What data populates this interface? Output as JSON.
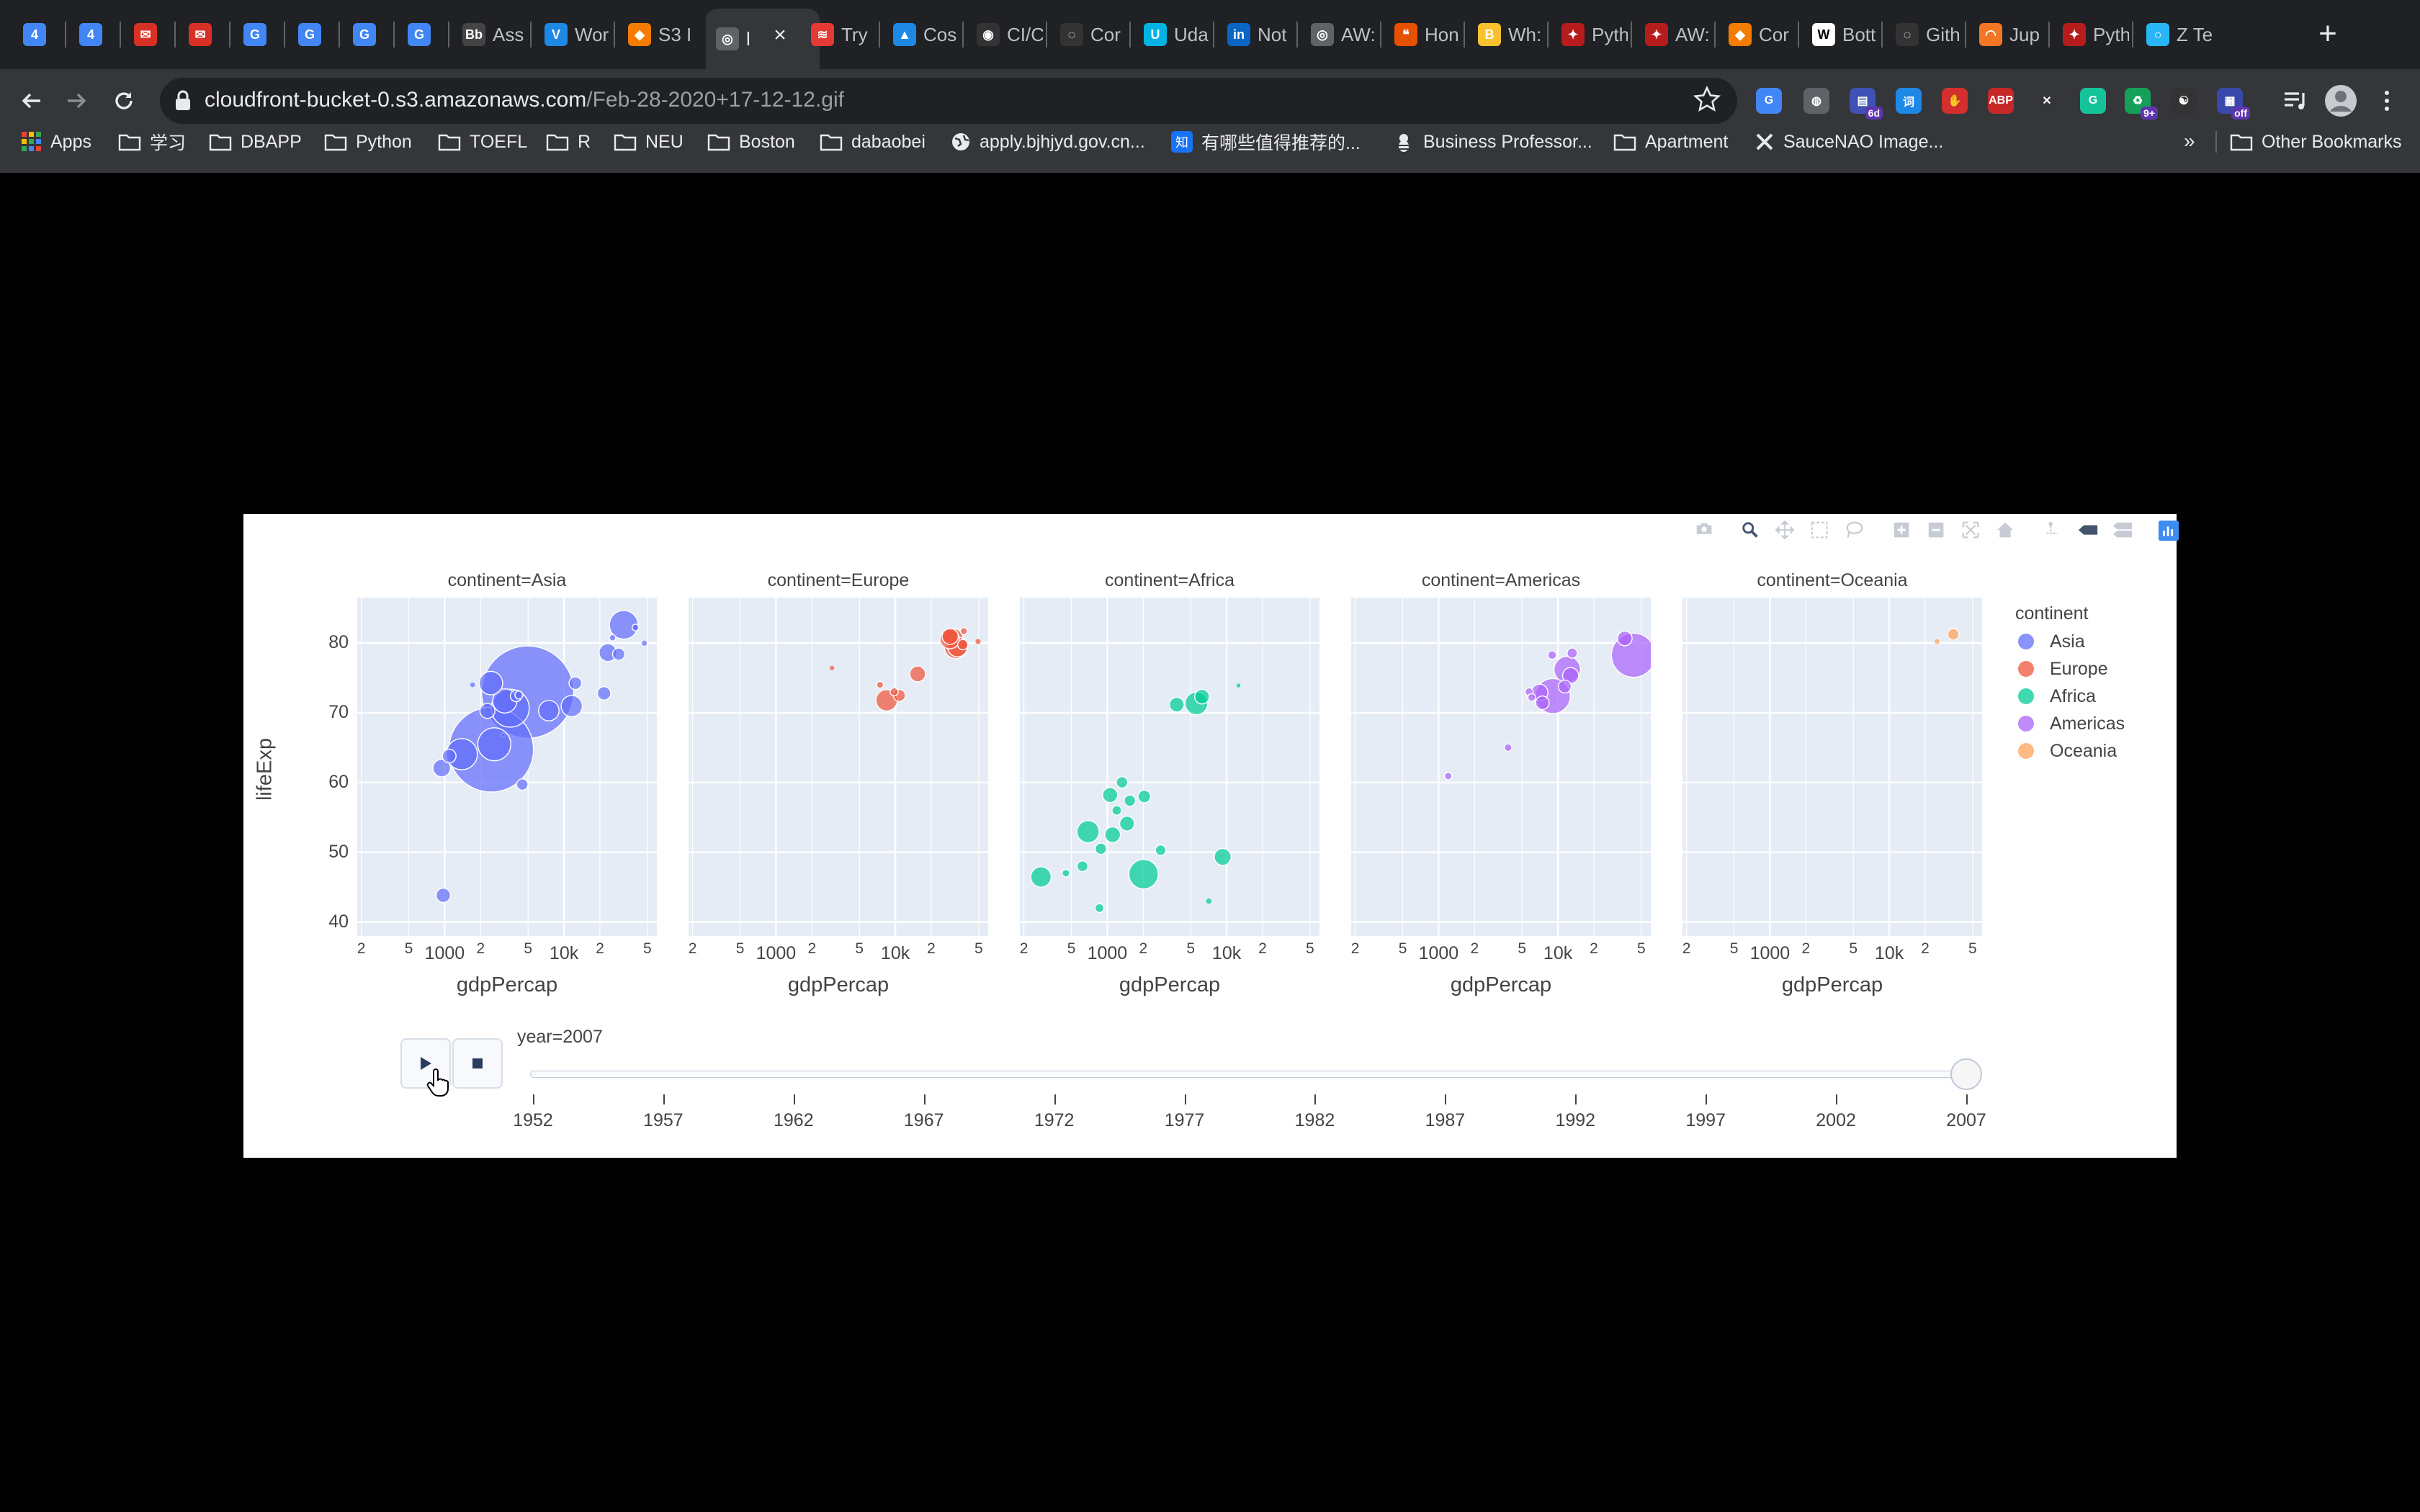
{
  "tabs": [
    {
      "title": "",
      "icon": "calendar-icon",
      "color": "#4285f4",
      "glyph": "4"
    },
    {
      "title": "",
      "icon": "calendar-icon",
      "color": "#4285f4",
      "glyph": "4"
    },
    {
      "title": "",
      "icon": "gmail-icon",
      "color": "#d93025",
      "glyph": "✉"
    },
    {
      "title": "",
      "icon": "gmail-icon",
      "color": "#d93025",
      "glyph": "✉"
    },
    {
      "title": "",
      "icon": "translate-icon",
      "color": "#4285f4",
      "glyph": "G"
    },
    {
      "title": "",
      "icon": "translate-icon",
      "color": "#4285f4",
      "glyph": "G"
    },
    {
      "title": "",
      "icon": "translate-icon",
      "color": "#4285f4",
      "glyph": "G"
    },
    {
      "title": "",
      "icon": "translate-icon",
      "color": "#4285f4",
      "glyph": "G"
    },
    {
      "title": "Ass",
      "icon": "bb-icon",
      "color": "#444444",
      "glyph": "Bb"
    },
    {
      "title": "Wor",
      "icon": "v-icon",
      "color": "#1e88e5",
      "glyph": "V"
    },
    {
      "title": "S3 I",
      "icon": "aws-icon",
      "color": "#f57c00",
      "glyph": "◆"
    },
    {
      "title": "l",
      "icon": "globe-icon",
      "color": "#5f6368",
      "glyph": "◎"
    },
    {
      "title": "Try",
      "icon": "redstack-icon",
      "color": "#e53935",
      "glyph": "≋"
    },
    {
      "title": "Cos",
      "icon": "triangle-icon",
      "color": "#1e88e5",
      "glyph": "▲"
    },
    {
      "title": "CI/C",
      "icon": "circleci-icon",
      "color": "#333333",
      "glyph": "◉"
    },
    {
      "title": "Cor",
      "icon": "github-icon",
      "color": "#333333",
      "glyph": "◌"
    },
    {
      "title": "Uda",
      "icon": "udacity-icon",
      "color": "#02b3e4",
      "glyph": "U"
    },
    {
      "title": "Not",
      "icon": "linkedin-icon",
      "color": "#0a66c2",
      "glyph": "in"
    },
    {
      "title": "AW:",
      "icon": "globe-icon",
      "color": "#5f6368",
      "glyph": "◎"
    },
    {
      "title": "Hon",
      "icon": "chat-icon",
      "color": "#e65100",
      "glyph": "❝"
    },
    {
      "title": "Wh:",
      "icon": "brand-icon",
      "color": "#fbc02d",
      "glyph": "B"
    },
    {
      "title": "Pyth",
      "icon": "pycon-icon",
      "color": "#b71c1c",
      "glyph": "✦"
    },
    {
      "title": "AW:",
      "icon": "pycon-icon",
      "color": "#b71c1c",
      "glyph": "✦"
    },
    {
      "title": "Cor",
      "icon": "aws-icon",
      "color": "#f57c00",
      "glyph": "◆"
    },
    {
      "title": "Bott",
      "icon": "wikipedia-icon",
      "color": "#ffffff",
      "glyph": "W"
    },
    {
      "title": "Gith",
      "icon": "github-icon",
      "color": "#333333",
      "glyph": "◌"
    },
    {
      "title": "Jup",
      "icon": "jupyter-icon",
      "color": "#f37626",
      "glyph": "◠"
    },
    {
      "title": "Pyth",
      "icon": "pycon-icon",
      "color": "#b71c1c",
      "glyph": "✦"
    },
    {
      "title": "Z Te",
      "icon": "ring-icon",
      "color": "#29b6f6",
      "glyph": "○"
    }
  ],
  "address": {
    "host": "cloudfront-bucket-0.s3.amazonaws.com",
    "path": "/Feb-28-2020+17-12-12.gif"
  },
  "extensions": [
    {
      "icon": "translate-ext-icon",
      "color": "#4285f4",
      "glyph": "G",
      "badge": ""
    },
    {
      "icon": "keep-icon",
      "color": "#5f6368",
      "glyph": "◍",
      "badge": ""
    },
    {
      "icon": "calendar-ext-icon",
      "color": "#3f51b5",
      "glyph": "▤",
      "badge": "6d"
    },
    {
      "icon": "dict-icon",
      "color": "#1e88e5",
      "glyph": "词",
      "badge": ""
    },
    {
      "icon": "hand-icon",
      "color": "#d32f2f",
      "glyph": "✋",
      "badge": ""
    },
    {
      "icon": "adblock-icon",
      "color": "#c62828",
      "glyph": "ABP",
      "badge": ""
    },
    {
      "icon": "x-ext-icon",
      "color": "#35363a",
      "glyph": "✕",
      "badge": ""
    },
    {
      "icon": "grammarly-icon",
      "color": "#15c39a",
      "glyph": "G",
      "badge": ""
    },
    {
      "icon": "ext-9-icon",
      "color": "#15a05a",
      "glyph": "♻",
      "badge": "9+"
    },
    {
      "icon": "dark-ext-icon",
      "color": "#333333",
      "glyph": "☯",
      "badge": ""
    },
    {
      "icon": "off-ext-icon",
      "color": "#3949ab",
      "glyph": "▦",
      "badge": "off"
    }
  ],
  "bookmarks": [
    {
      "label": "Apps",
      "icon": "apps-grid-icon"
    },
    {
      "label": "学习",
      "icon": "folder-icon"
    },
    {
      "label": "DBAPP",
      "icon": "folder-icon"
    },
    {
      "label": "Python",
      "icon": "folder-icon"
    },
    {
      "label": "TOEFL",
      "icon": "folder-icon"
    },
    {
      "label": "R",
      "icon": "folder-icon"
    },
    {
      "label": "NEU",
      "icon": "folder-icon"
    },
    {
      "label": "Boston",
      "icon": "folder-icon"
    },
    {
      "label": "dabaobei",
      "icon": "folder-icon"
    },
    {
      "label": "apply.bjhjyd.gov.cn...",
      "icon": "globe-icon"
    },
    {
      "label": "有哪些值得推荐的...",
      "icon": "zhihu-icon"
    },
    {
      "label": "Business Professor...",
      "icon": "bee-icon"
    },
    {
      "label": "Apartment",
      "icon": "folder-icon"
    },
    {
      "label": "SauceNAO Image...",
      "icon": "x-icon"
    }
  ],
  "bookmarks_more": "»",
  "other_bookmarks": "Other Bookmarks",
  "chart": {
    "ytitle": "lifeExp",
    "xtitle": "gdpPercap",
    "legend_title": "continent",
    "current_value_label": "year=2007",
    "y_ticks": [
      "80",
      "70",
      "60",
      "50",
      "40"
    ],
    "x_ticks": [
      "2",
      "5",
      "1000",
      "2",
      "5",
      "10k",
      "2",
      "5"
    ]
  },
  "chart_data": {
    "type": "scatter",
    "x_scale": "log",
    "xlabel": "gdpPercap",
    "ylabel": "lifeExp",
    "xlim": [
      200,
      60000
    ],
    "ylim": [
      38,
      86
    ],
    "facets": [
      "continent=Asia",
      "continent=Europe",
      "continent=Africa",
      "continent=Americas",
      "continent=Oceania"
    ],
    "series": [
      {
        "name": "Asia",
        "color": "#636efa",
        "points": [
          {
            "x": 4959,
            "y": 72.96,
            "size": 1318683096
          },
          {
            "x": 2452,
            "y": 64.7,
            "size": 1110396331
          },
          {
            "x": 3541,
            "y": 70.65,
            "size": 223547000
          },
          {
            "x": 2605,
            "y": 65.48,
            "size": 169270617
          },
          {
            "x": 1391,
            "y": 64.06,
            "size": 150448339
          },
          {
            "x": 3190,
            "y": 71.69,
            "size": 91077287
          },
          {
            "x": 31656,
            "y": 82.6,
            "size": 127467972
          },
          {
            "x": 2442,
            "y": 74.25,
            "size": 85262356
          },
          {
            "x": 7458,
            "y": 70.3,
            "size": 65068149
          },
          {
            "x": 11606,
            "y": 70.96,
            "size": 69453570
          },
          {
            "x": 974,
            "y": 43.83,
            "size": 31889923
          },
          {
            "x": 23348,
            "y": 78.62,
            "size": 49044790
          },
          {
            "x": 12452,
            "y": 74.24,
            "size": 24821286
          },
          {
            "x": 944,
            "y": 62.07,
            "size": 47761980
          },
          {
            "x": 1091,
            "y": 63.79,
            "size": 28901790
          },
          {
            "x": 4471,
            "y": 59.72,
            "size": 19951656
          },
          {
            "x": 3970,
            "y": 72.4,
            "size": 20378239
          },
          {
            "x": 2281,
            "y": 70.26,
            "size": 35000000
          },
          {
            "x": 21655,
            "y": 72.78,
            "size": 27601038
          },
          {
            "x": 28718,
            "y": 78.4,
            "size": 23174294
          },
          {
            "x": 47143,
            "y": 79.97,
            "size": 4553009
          },
          {
            "x": 39725,
            "y": 82.21,
            "size": 6980412
          },
          {
            "x": 25523,
            "y": 80.75,
            "size": 6426679
          },
          {
            "x": 4186,
            "y": 72.54,
            "size": 10000000
          },
          {
            "x": 3095,
            "y": 66.8,
            "size": 2874127
          },
          {
            "x": 1714,
            "y": 74.0,
            "size": 4000000
          }
        ]
      },
      {
        "name": "Europe",
        "color": "#ef553b",
        "points": [
          {
            "x": 32170,
            "y": 79.41,
            "size": 82400996
          },
          {
            "x": 30470,
            "y": 80.66,
            "size": 61083916
          },
          {
            "x": 33203,
            "y": 79.43,
            "size": 60776238
          },
          {
            "x": 28570,
            "y": 80.55,
            "size": 58147733
          },
          {
            "x": 8458,
            "y": 71.78,
            "size": 71158647
          },
          {
            "x": 28821,
            "y": 80.94,
            "size": 40448191
          },
          {
            "x": 15390,
            "y": 75.56,
            "size": 38518241
          },
          {
            "x": 10808,
            "y": 72.48,
            "size": 22276056
          },
          {
            "x": 36798,
            "y": 79.76,
            "size": 16570613
          },
          {
            "x": 9786,
            "y": 73.0,
            "size": 10150265
          },
          {
            "x": 7446,
            "y": 74.0,
            "size": 7322858
          },
          {
            "x": 2947,
            "y": 76.42,
            "size": 3600523
          },
          {
            "x": 49357,
            "y": 80.2,
            "size": 4627926
          },
          {
            "x": 37506,
            "y": 81.7,
            "size": 7554661
          }
        ]
      },
      {
        "name": "Africa",
        "color": "#00cc96",
        "points": [
          {
            "x": 2014,
            "y": 46.86,
            "size": 135031164
          },
          {
            "x": 690,
            "y": 52.95,
            "size": 76511887
          },
          {
            "x": 5581,
            "y": 71.34,
            "size": 80264543
          },
          {
            "x": 278,
            "y": 46.46,
            "size": 64606759
          },
          {
            "x": 9270,
            "y": 49.34,
            "size": 43997828
          },
          {
            "x": 1107,
            "y": 52.52,
            "size": 38139640
          },
          {
            "x": 1056,
            "y": 58.2,
            "size": 35000000
          },
          {
            "x": 6223,
            "y": 72.3,
            "size": 33333216
          },
          {
            "x": 3820,
            "y": 71.16,
            "size": 33757175
          },
          {
            "x": 1463,
            "y": 54.11,
            "size": 34000000
          },
          {
            "x": 2042,
            "y": 58.0,
            "size": 25000000
          },
          {
            "x": 1328,
            "y": 60.02,
            "size": 20000000
          },
          {
            "x": 883,
            "y": 50.5,
            "size": 20000000
          },
          {
            "x": 1545,
            "y": 57.4,
            "size": 20000000
          },
          {
            "x": 1200,
            "y": 56.0,
            "size": 14000000
          },
          {
            "x": 2800,
            "y": 50.3,
            "size": 17000000
          },
          {
            "x": 620,
            "y": 48.0,
            "size": 18000000
          },
          {
            "x": 860,
            "y": 42.0,
            "size": 12000000
          },
          {
            "x": 450,
            "y": 47.0,
            "size": 9000000
          },
          {
            "x": 12570,
            "y": 73.9,
            "size": 3000000
          },
          {
            "x": 7092,
            "y": 43.0,
            "size": 5000000
          }
        ]
      },
      {
        "name": "Americas",
        "color": "#ab63fa",
        "points": [
          {
            "x": 42952,
            "y": 78.24,
            "size": 301139947
          },
          {
            "x": 9066,
            "y": 72.39,
            "size": 190010647
          },
          {
            "x": 11978,
            "y": 76.2,
            "size": 108700891
          },
          {
            "x": 7007,
            "y": 72.89,
            "size": 44227550
          },
          {
            "x": 12779,
            "y": 75.32,
            "size": 40301927
          },
          {
            "x": 7409,
            "y": 71.42,
            "size": 28674757
          },
          {
            "x": 11416,
            "y": 73.75,
            "size": 26084662
          },
          {
            "x": 36319,
            "y": 80.65,
            "size": 33390141
          },
          {
            "x": 1202,
            "y": 60.92,
            "size": 8502814
          },
          {
            "x": 3820,
            "y": 65.0,
            "size": 9000000
          },
          {
            "x": 5728,
            "y": 73.0,
            "size": 10000000
          },
          {
            "x": 13172,
            "y": 78.55,
            "size": 16284741
          },
          {
            "x": 8948,
            "y": 78.27,
            "size": 11416987
          },
          {
            "x": 6025,
            "y": 72.2,
            "size": 9000000
          }
        ]
      },
      {
        "name": "Oceania",
        "color": "#ffa15a",
        "points": [
          {
            "x": 34435,
            "y": 81.24,
            "size": 20434176
          },
          {
            "x": 25185,
            "y": 80.2,
            "size": 4115771
          }
        ]
      }
    ],
    "slider_steps": [
      "1952",
      "1957",
      "1962",
      "1967",
      "1972",
      "1977",
      "1982",
      "1987",
      "1992",
      "1997",
      "2002",
      "2007"
    ],
    "slider_current": "2007"
  }
}
